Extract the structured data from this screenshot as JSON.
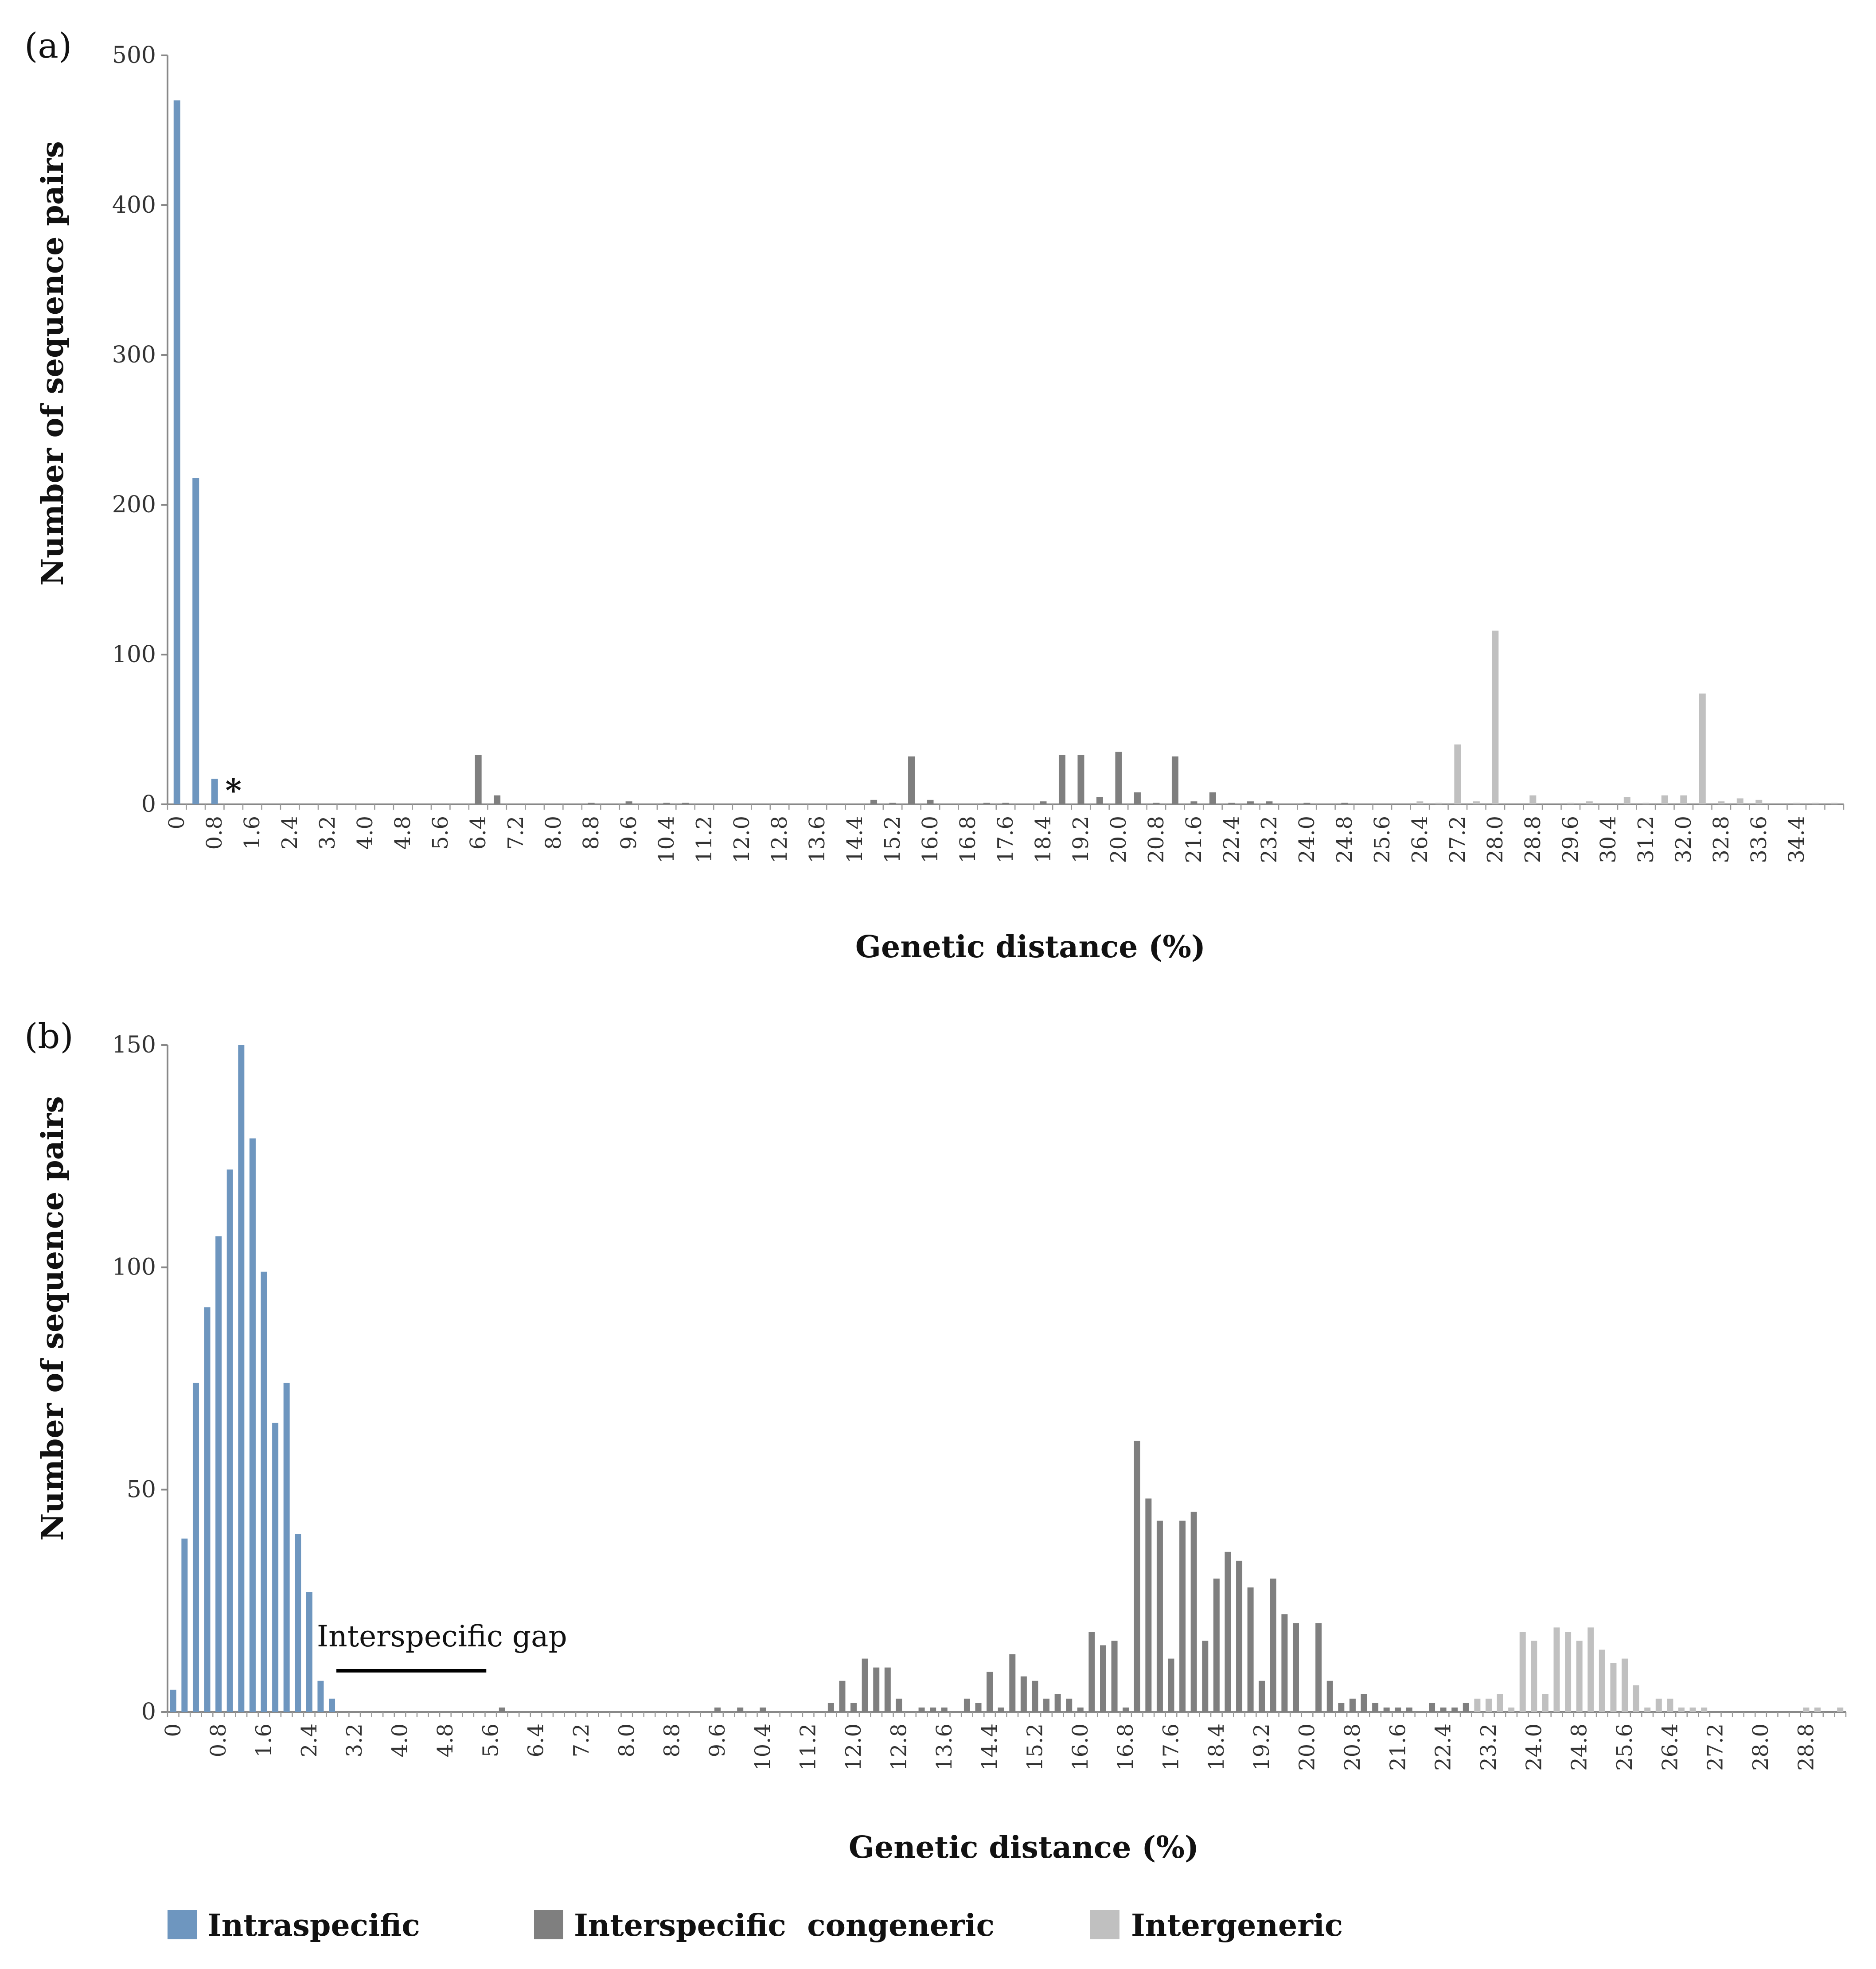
{
  "colors": {
    "intraspecific": "#6e96bf",
    "interspecific": "#7f7f7f",
    "intergeneric": "#c0c0c0"
  },
  "legend": [
    {
      "label": "Intraspecific",
      "key": "intraspecific"
    },
    {
      "label": "Interspecific  congeneric",
      "key": "interspecific"
    },
    {
      "label": "Intergeneric",
      "key": "intergeneric"
    }
  ],
  "chart_data": [
    {
      "panel_label": "(a)",
      "type": "bar",
      "ylabel": "Number of sequence pairs",
      "xlabel": "Genetic distance (%)",
      "ylim": [
        0,
        500
      ],
      "yticks": [
        "0",
        "100",
        "200",
        "300",
        "400",
        "500"
      ],
      "bin_width": 0.4,
      "n_bins": 89,
      "tick_labels": [
        "0",
        "0.8",
        "1.6",
        "2.4",
        "3.2",
        "4.0",
        "4.8",
        "5.6",
        "6.4",
        "7.2",
        "8.0",
        "8.8",
        "9.6",
        "10.4",
        "11.2",
        "12.0",
        "12.8",
        "13.6",
        "14.4",
        "15.2",
        "16.0",
        "16.8",
        "17.6",
        "18.4",
        "19.2",
        "20.0",
        "20.8",
        "21.6",
        "22.4",
        "23.2",
        "24.0",
        "24.8",
        "25.6",
        "26.4",
        "27.2",
        "28.0",
        "28.8",
        "29.6",
        "30.4",
        "31.2",
        "32.0",
        "32.8",
        "33.6",
        "34.4"
      ],
      "annotation": "*",
      "annotation_x": 1.4,
      "series": [
        {
          "name": "Intraspecific",
          "key": "intraspecific",
          "points": [
            [
              0,
              470
            ],
            [
              0.4,
              218
            ],
            [
              0.8,
              17
            ]
          ]
        },
        {
          "name": "Interspecific congeneric",
          "key": "interspecific",
          "points": [
            [
              6.4,
              33
            ],
            [
              6.8,
              6
            ],
            [
              8.8,
              1
            ],
            [
              9.6,
              2
            ],
            [
              10.4,
              1
            ],
            [
              10.8,
              1
            ],
            [
              14.8,
              3
            ],
            [
              15.2,
              1
            ],
            [
              15.6,
              32
            ],
            [
              16.0,
              3
            ],
            [
              17.2,
              1
            ],
            [
              17.6,
              1
            ],
            [
              18.4,
              2
            ],
            [
              18.8,
              33
            ],
            [
              19.2,
              33
            ],
            [
              19.6,
              5
            ],
            [
              20.0,
              35
            ],
            [
              20.4,
              8
            ],
            [
              20.8,
              1
            ],
            [
              21.2,
              32
            ],
            [
              21.6,
              2
            ],
            [
              22.0,
              8
            ],
            [
              22.4,
              1
            ],
            [
              22.8,
              2
            ],
            [
              23.2,
              2
            ],
            [
              24.0,
              1
            ],
            [
              24.8,
              1
            ]
          ]
        },
        {
          "name": "Intergeneric",
          "key": "intergeneric",
          "points": [
            [
              26.4,
              2
            ],
            [
              26.8,
              1
            ],
            [
              27.2,
              40
            ],
            [
              27.6,
              2
            ],
            [
              28.0,
              116
            ],
            [
              28.8,
              6
            ],
            [
              29.6,
              1
            ],
            [
              30.0,
              2
            ],
            [
              30.8,
              5
            ],
            [
              31.2,
              1
            ],
            [
              31.6,
              6
            ],
            [
              32.0,
              6
            ],
            [
              32.4,
              74
            ],
            [
              32.8,
              2
            ],
            [
              33.2,
              4
            ],
            [
              33.6,
              3
            ],
            [
              34.4,
              1
            ],
            [
              34.8,
              1
            ],
            [
              35.2,
              1
            ]
          ]
        }
      ]
    },
    {
      "panel_label": "(b)",
      "type": "bar",
      "ylabel": "Number of sequence pairs",
      "xlabel": "Genetic distance (%)",
      "ylim": [
        0,
        150
      ],
      "yticks": [
        "0",
        "50",
        "100",
        "150"
      ],
      "bin_width": 0.2,
      "n_bins": 148,
      "tick_labels": [
        "0",
        "0.8",
        "1.6",
        "2.4",
        "3.2",
        "4.0",
        "4.8",
        "5.6",
        "6.4",
        "7.2",
        "8.0",
        "8.8",
        "9.6",
        "10.4",
        "11.2",
        "12.0",
        "12.8",
        "13.6",
        "14.4",
        "15.2",
        "16.0",
        "16.8",
        "17.6",
        "18.4",
        "19.2",
        "20.0",
        "20.8",
        "21.6",
        "22.4",
        "23.2",
        "24.0",
        "24.8",
        "25.6",
        "26.4",
        "27.2",
        "28.0",
        "28.8"
      ],
      "annotation": "Interspecific gap",
      "gap_range": [
        2.8,
        5.6
      ],
      "series": [
        {
          "name": "Intraspecific",
          "key": "intraspecific",
          "points": [
            [
              0,
              5
            ],
            [
              0.2,
              39
            ],
            [
              0.4,
              74
            ],
            [
              0.6,
              91
            ],
            [
              0.8,
              107
            ],
            [
              1.0,
              122
            ],
            [
              1.2,
              150
            ],
            [
              1.4,
              129
            ],
            [
              1.6,
              99
            ],
            [
              1.8,
              65
            ],
            [
              2.0,
              74
            ],
            [
              2.2,
              40
            ],
            [
              2.4,
              27
            ],
            [
              2.6,
              7
            ],
            [
              2.8,
              3
            ]
          ]
        },
        {
          "name": "Interspecific congeneric",
          "key": "interspecific",
          "points": [
            [
              5.8,
              1
            ],
            [
              9.6,
              1
            ],
            [
              10.0,
              1
            ],
            [
              10.4,
              1
            ],
            [
              11.6,
              2
            ],
            [
              11.8,
              7
            ],
            [
              12.0,
              2
            ],
            [
              12.2,
              12
            ],
            [
              12.4,
              10
            ],
            [
              12.6,
              10
            ],
            [
              12.8,
              3
            ],
            [
              13.2,
              1
            ],
            [
              13.4,
              1
            ],
            [
              13.6,
              1
            ],
            [
              14.0,
              3
            ],
            [
              14.2,
              2
            ],
            [
              14.4,
              9
            ],
            [
              14.6,
              1
            ],
            [
              14.8,
              13
            ],
            [
              15.0,
              8
            ],
            [
              15.2,
              7
            ],
            [
              15.4,
              3
            ],
            [
              15.6,
              4
            ],
            [
              15.8,
              3
            ],
            [
              16.0,
              1
            ],
            [
              16.2,
              18
            ],
            [
              16.4,
              15
            ],
            [
              16.6,
              16
            ],
            [
              16.8,
              1
            ],
            [
              17.0,
              61
            ],
            [
              17.2,
              48
            ],
            [
              17.4,
              43
            ],
            [
              17.6,
              12
            ],
            [
              17.8,
              43
            ],
            [
              18.0,
              45
            ],
            [
              18.2,
              16
            ],
            [
              18.4,
              30
            ],
            [
              18.6,
              36
            ],
            [
              18.8,
              34
            ],
            [
              19.0,
              28
            ],
            [
              19.2,
              7
            ],
            [
              19.4,
              30
            ],
            [
              19.6,
              22
            ],
            [
              19.8,
              20
            ],
            [
              20.2,
              20
            ],
            [
              20.4,
              7
            ],
            [
              20.6,
              2
            ],
            [
              20.8,
              3
            ],
            [
              21.0,
              4
            ],
            [
              21.2,
              2
            ],
            [
              21.4,
              1
            ],
            [
              21.6,
              1
            ],
            [
              21.8,
              1
            ],
            [
              22.2,
              2
            ],
            [
              22.4,
              1
            ],
            [
              22.6,
              1
            ],
            [
              22.8,
              2
            ]
          ]
        },
        {
          "name": "Intergeneric",
          "key": "intergeneric",
          "points": [
            [
              23.0,
              3
            ],
            [
              23.2,
              3
            ],
            [
              23.4,
              4
            ],
            [
              23.6,
              1
            ],
            [
              23.8,
              18
            ],
            [
              24.0,
              16
            ],
            [
              24.2,
              4
            ],
            [
              24.4,
              19
            ],
            [
              24.6,
              18
            ],
            [
              24.8,
              16
            ],
            [
              25.0,
              19
            ],
            [
              25.2,
              14
            ],
            [
              25.4,
              11
            ],
            [
              25.6,
              12
            ],
            [
              25.8,
              6
            ],
            [
              26.0,
              1
            ],
            [
              26.2,
              3
            ],
            [
              26.4,
              3
            ],
            [
              26.6,
              1
            ],
            [
              26.8,
              1
            ],
            [
              27.0,
              1
            ],
            [
              28.8,
              1
            ],
            [
              29.0,
              1
            ],
            [
              29.4,
              1
            ]
          ]
        }
      ]
    }
  ]
}
